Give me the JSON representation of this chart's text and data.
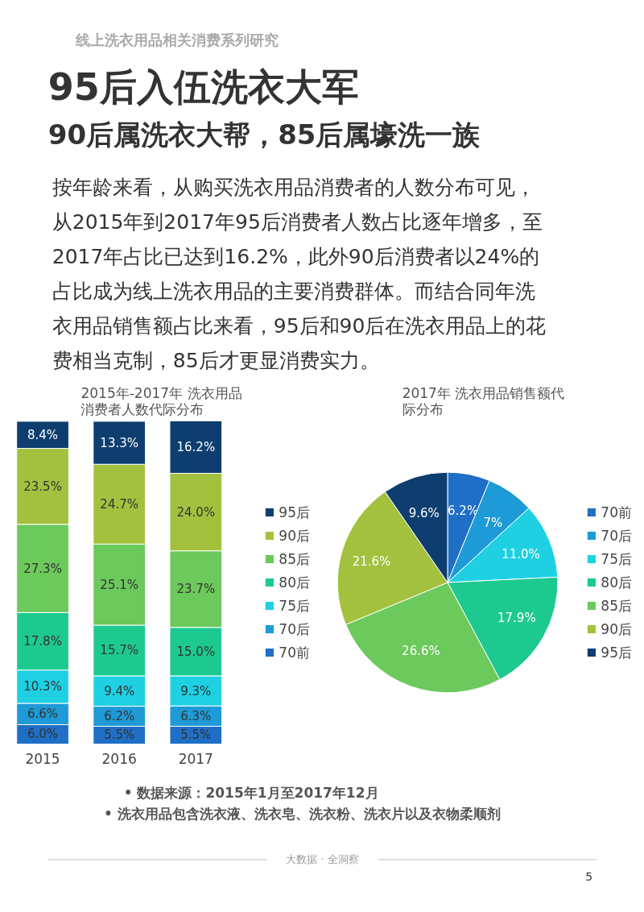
{
  "chart_data": [
    {
      "type": "other",
      "title": "95后入伍洗衣大军",
      "subtitle": "90后属洗衣大帮，85后属壕洗一族",
      "annotations": [
        "线上洗衣用品相关消费系列研究",
        "按年龄来看，从购买洗衣用品消费者的人数分布可见，",
        "从2015年到2017年95后消费者人数占比逐年增多，至",
        "2017年占比已达到16.2%，此外90后消费者以24%的",
        "占比成为线上洗衣用品的主要消费群体。而结合同年洗",
        "衣用品销售额占比来看，95后和90后在洗衣用品上的花",
        "费相当克制，85后才更显消费实力。"
      ]
    },
    {
      "type": "bar",
      "stacked": true,
      "title": "2015年-2017年 洗衣用品消费者人数代际分布",
      "categories": [
        "2015",
        "2016",
        "2017"
      ],
      "legend": "right",
      "series": [
        {
          "name": "70前",
          "color": "#1f6fc6",
          "values": [
            6.0,
            5.5,
            5.5
          ],
          "value_labels": [
            "6.0%",
            "5.5%",
            "5.5%"
          ]
        },
        {
          "name": "70后",
          "color": "#1e9ad6",
          "values": [
            6.6,
            6.2,
            6.3
          ],
          "value_labels": [
            "6.6%",
            "6.2%",
            "6.3%"
          ]
        },
        {
          "name": "75后",
          "color": "#1fd0e3",
          "values": [
            10.3,
            9.4,
            9.3
          ],
          "value_labels": [
            "10.3%",
            "9.4%",
            "9.3%"
          ]
        },
        {
          "name": "80后",
          "color": "#1ec990",
          "values": [
            17.8,
            15.7,
            15.0
          ],
          "value_labels": [
            "17.8%",
            "15.7%",
            "15.0%"
          ]
        },
        {
          "name": "85后",
          "color": "#6cc95b",
          "values": [
            27.3,
            25.1,
            23.7
          ],
          "value_labels": [
            "27.3%",
            "25.1%",
            "23.7%"
          ]
        },
        {
          "name": "90后",
          "color": "#a3c13e",
          "values": [
            23.5,
            24.7,
            24.0
          ],
          "value_labels": [
            "23.5%",
            "24.7%",
            "24.0%"
          ]
        },
        {
          "name": "95后",
          "color": "#0e3e6f",
          "values": [
            8.4,
            13.3,
            16.2
          ],
          "value_labels": [
            "8.4%",
            "13.3%",
            "16.2%"
          ]
        }
      ]
    },
    {
      "type": "pie",
      "title": "2017年 洗衣用品销售额代际分布",
      "legend": "right",
      "categories": [
        "70前",
        "70后",
        "75后",
        "80后",
        "85后",
        "90后",
        "95后"
      ],
      "values": [
        6.2,
        7,
        11.0,
        17.9,
        26.6,
        21.6,
        9.6
      ],
      "value_labels": [
        "6.2%",
        "7%",
        "11.0%",
        "17.9%",
        "26.6%",
        "21.6%",
        "9.6%"
      ],
      "colors": [
        "#1f6fc6",
        "#1e9ad6",
        "#1fd0e3",
        "#1ec990",
        "#6cc95b",
        "#a3c13e",
        "#0e3e6f"
      ]
    },
    {
      "type": "other",
      "annotations": [
        "•   数据来源：2015年1月至2017年12月",
        "•   洗衣用品包含洗衣液、洗衣皂、洗衣粉、洗衣片以及衣物柔顺剂",
        "大数据 · 全洞察",
        "5"
      ]
    }
  ]
}
